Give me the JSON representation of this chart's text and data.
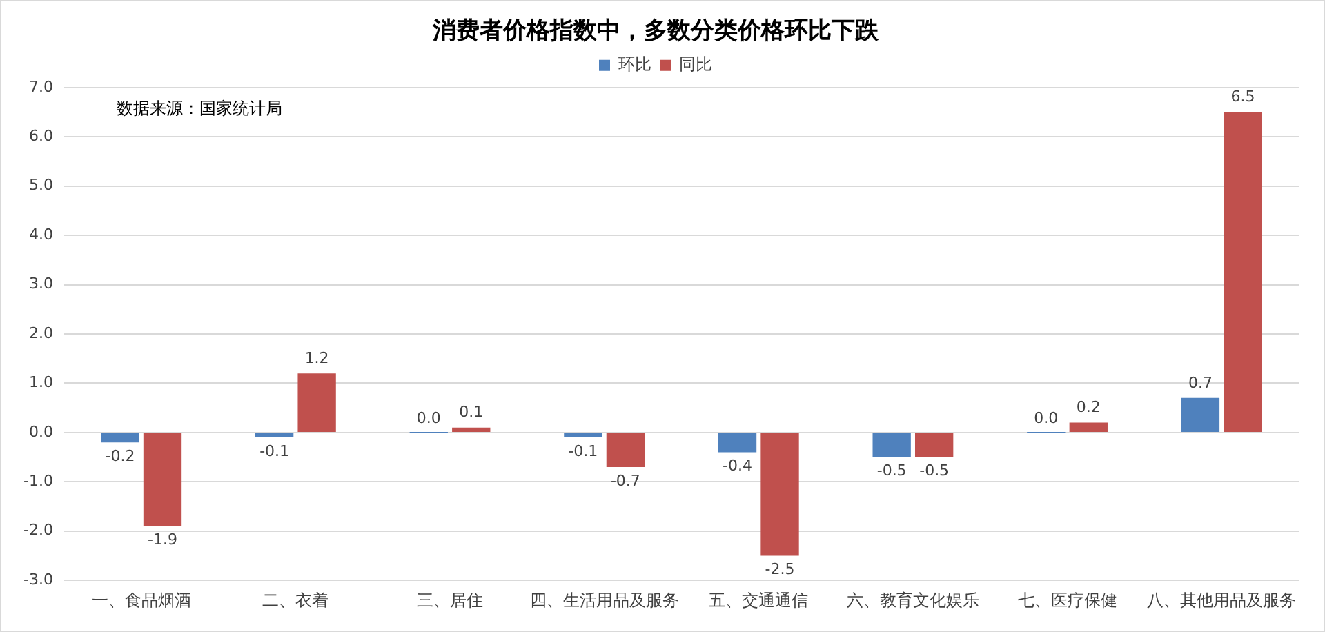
{
  "chart_data": {
    "type": "bar",
    "title": "消费者价格指数中，多数分类价格环比下跌",
    "categories": [
      "一、食品烟酒",
      "二、衣着",
      "三、居住",
      "四、生活用品及服务",
      "五、交通通信",
      "六、教育文化娱乐",
      "七、医疗保健",
      "八、其他用品及服务"
    ],
    "series": [
      {
        "name": "环比",
        "color": "#4f81bd",
        "values": [
          -0.2,
          -0.1,
          0.0,
          -0.1,
          -0.4,
          -0.5,
          0.0,
          0.7
        ],
        "value_labels": [
          "-0.2",
          "-0.1",
          "0.0",
          "-0.1",
          "-0.4",
          "-0.5",
          "0.0",
          "0.7"
        ]
      },
      {
        "name": "同比",
        "color": "#c0504d",
        "values": [
          -1.9,
          1.2,
          0.1,
          -0.7,
          -2.5,
          -0.5,
          0.2,
          6.5
        ],
        "value_labels": [
          "-1.9",
          "1.2",
          "0.1",
          "-0.7",
          "-2.5",
          "-0.5",
          "0.2",
          "6.5"
        ]
      }
    ],
    "ylim": [
      -3,
      7
    ],
    "yticks": [
      {
        "value": -3,
        "label": "-3.0"
      },
      {
        "value": -2,
        "label": "-2.0"
      },
      {
        "value": -1,
        "label": "-1.0"
      },
      {
        "value": 0,
        "label": "0.0"
      },
      {
        "value": 1,
        "label": "1.0"
      },
      {
        "value": 2,
        "label": "2.0"
      },
      {
        "value": 3,
        "label": "3.0"
      },
      {
        "value": 4,
        "label": "4.0"
      },
      {
        "value": 5,
        "label": "5.0"
      },
      {
        "value": 6,
        "label": "6.0"
      },
      {
        "value": 7,
        "label": "7.0"
      }
    ],
    "grid": "y",
    "legend": "top",
    "annotations": [
      "数据来源：国家统计局"
    ]
  }
}
